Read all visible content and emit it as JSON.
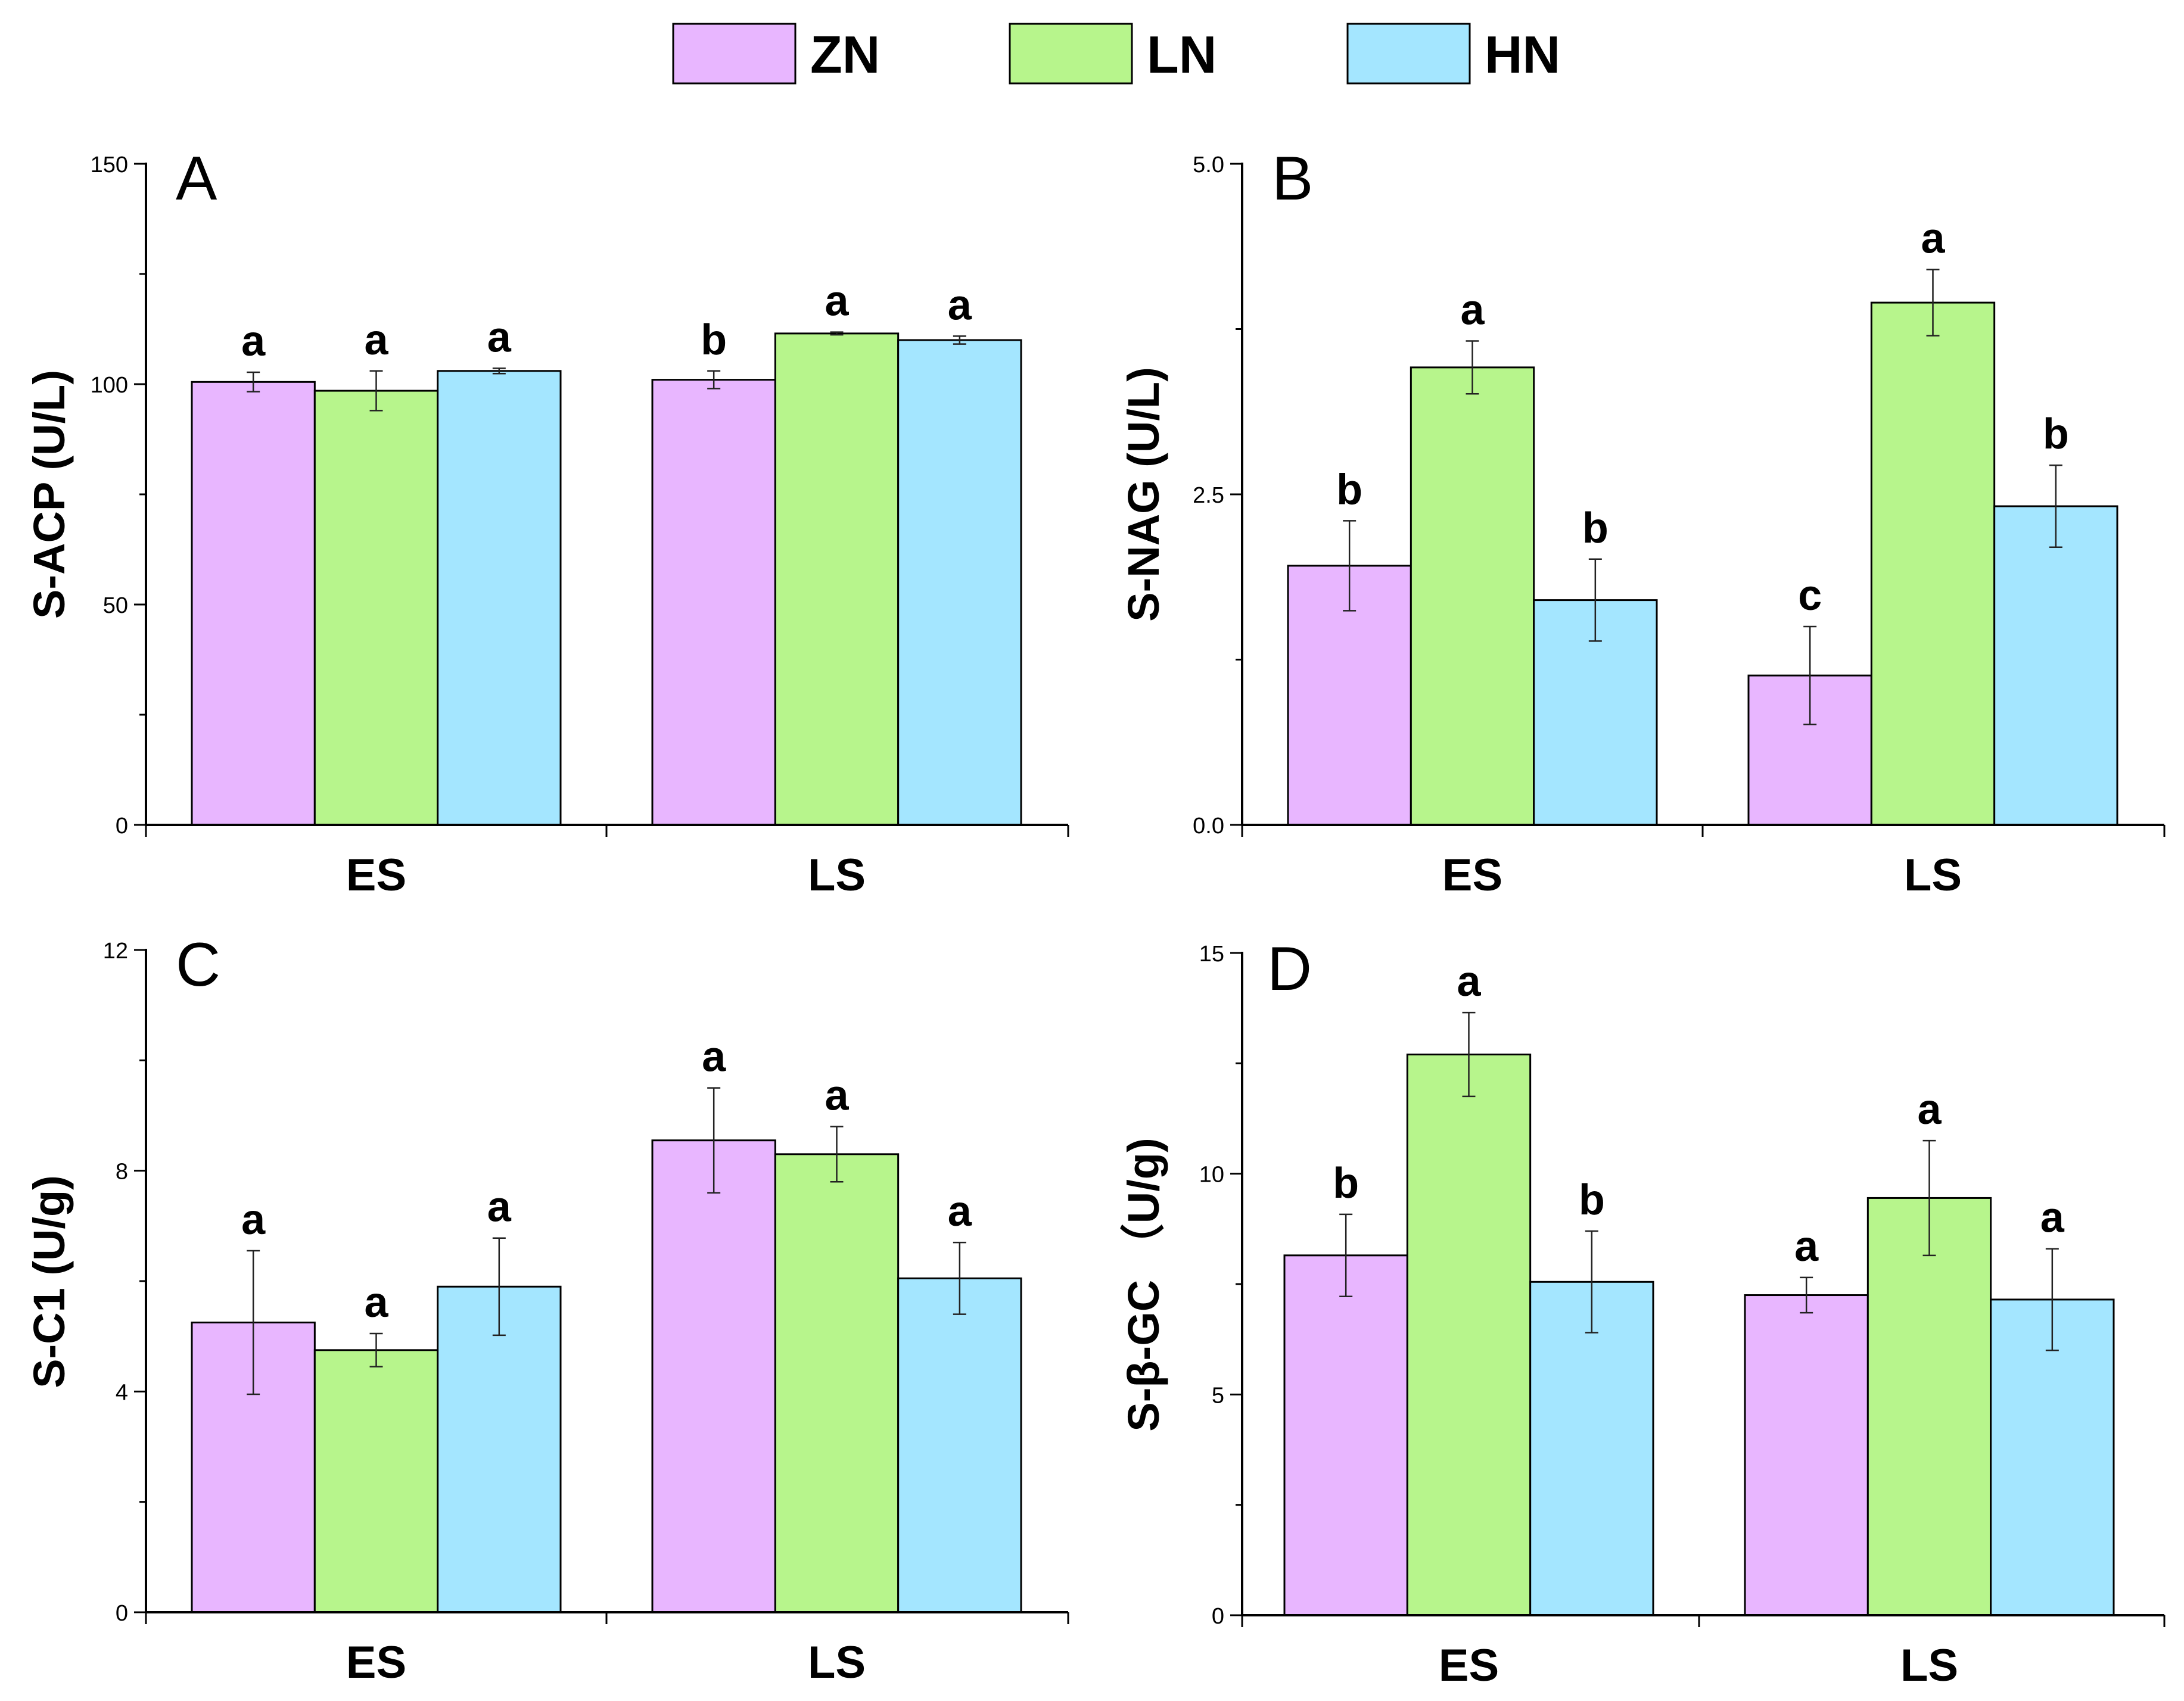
{
  "legend": {
    "items": [
      {
        "name": "ZN",
        "color": "#E8B6FF"
      },
      {
        "name": "LN",
        "color": "#B7F58C"
      },
      {
        "name": "HN",
        "color": "#A4E6FF"
      }
    ]
  },
  "chart_data": [
    {
      "type": "bar",
      "panel": "A",
      "ylabel": "S-ACP (U/L)",
      "ylim": [
        0,
        150
      ],
      "yticks": [
        0,
        50,
        100,
        150
      ],
      "ytick_labels": [
        "0",
        "50",
        "100",
        "150"
      ],
      "categories": [
        "ES",
        "LS"
      ],
      "series": [
        {
          "name": "ZN",
          "values": [
            100.5,
            101.0
          ],
          "errors": [
            2.2,
            2.0
          ],
          "labels": [
            "a",
            "b"
          ]
        },
        {
          "name": "LN",
          "values": [
            98.5,
            111.5
          ],
          "errors": [
            4.5,
            0.3
          ],
          "labels": [
            "a",
            "a"
          ]
        },
        {
          "name": "HN",
          "values": [
            103.0,
            110.0
          ],
          "errors": [
            0.6,
            0.9
          ],
          "labels": [
            "a",
            "a"
          ]
        }
      ]
    },
    {
      "type": "bar",
      "panel": "B",
      "ylabel": "S-NAG (U/L)",
      "ylim": [
        0,
        5
      ],
      "yticks": [
        0,
        2.5,
        5
      ],
      "ytick_labels": [
        "0.0",
        "2.5",
        "5.0"
      ],
      "categories": [
        "ES",
        "LS"
      ],
      "series": [
        {
          "name": "ZN",
          "values": [
            1.96,
            1.13
          ],
          "errors": [
            0.34,
            0.37
          ],
          "labels": [
            "b",
            "c"
          ]
        },
        {
          "name": "LN",
          "values": [
            3.46,
            3.95
          ],
          "errors": [
            0.2,
            0.25
          ],
          "labels": [
            "a",
            "a"
          ]
        },
        {
          "name": "HN",
          "values": [
            1.7,
            2.41
          ],
          "errors": [
            0.31,
            0.31
          ],
          "labels": [
            "b",
            "b"
          ]
        }
      ]
    },
    {
      "type": "bar",
      "panel": "C",
      "ylabel": "S-C1 (U/g)",
      "ylim": [
        0,
        12
      ],
      "yticks": [
        0,
        4,
        8,
        12
      ],
      "ytick_labels": [
        "0",
        "4",
        "8",
        "12"
      ],
      "categories": [
        "ES",
        "LS"
      ],
      "series": [
        {
          "name": "ZN",
          "values": [
            5.25,
            8.55
          ],
          "errors": [
            1.3,
            0.95
          ],
          "labels": [
            "a",
            "a"
          ]
        },
        {
          "name": "LN",
          "values": [
            4.75,
            8.3
          ],
          "errors": [
            0.3,
            0.5
          ],
          "labels": [
            "a",
            "a"
          ]
        },
        {
          "name": "HN",
          "values": [
            5.9,
            6.05
          ],
          "errors": [
            0.88,
            0.65
          ],
          "labels": [
            "a",
            "a"
          ]
        }
      ]
    },
    {
      "type": "bar",
      "panel": "D",
      "ylabel": "S-β-GC  （U/g)",
      "ylim": [
        0,
        15
      ],
      "yticks": [
        0,
        5,
        10,
        15
      ],
      "ytick_labels": [
        "0",
        "5",
        "10",
        "15"
      ],
      "categories": [
        "ES",
        "LS"
      ],
      "series": [
        {
          "name": "ZN",
          "values": [
            8.15,
            7.25
          ],
          "errors": [
            0.93,
            0.4
          ],
          "labels": [
            "b",
            "a"
          ]
        },
        {
          "name": "LN",
          "values": [
            12.7,
            9.45
          ],
          "errors": [
            0.95,
            1.3
          ],
          "labels": [
            "a",
            "a"
          ]
        },
        {
          "name": "HN",
          "values": [
            7.55,
            7.15
          ],
          "errors": [
            1.15,
            1.15
          ],
          "labels": [
            "b",
            "a"
          ]
        }
      ]
    }
  ]
}
